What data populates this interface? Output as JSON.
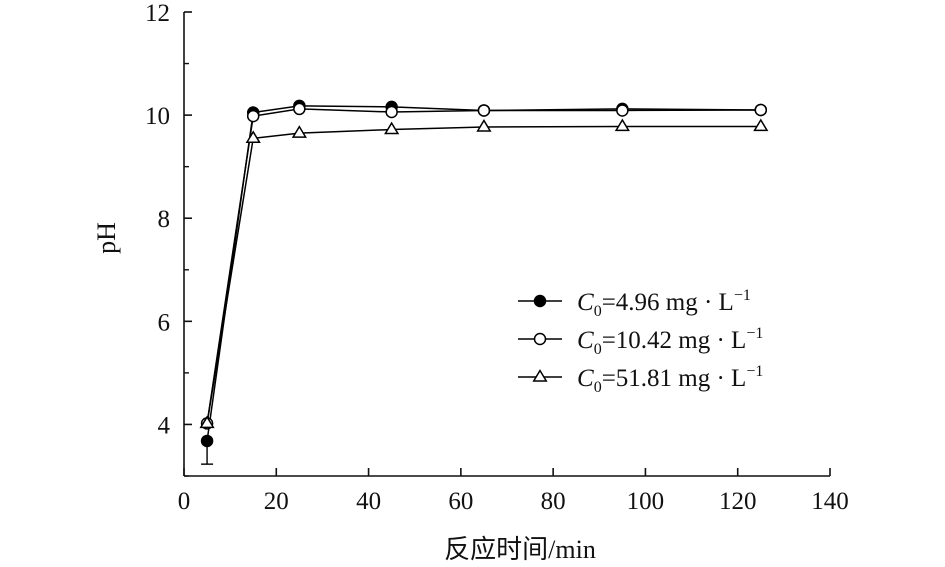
{
  "chart_data": {
    "type": "line",
    "xlabel": "反应时间/min",
    "ylabel": "pH",
    "xlim": [
      0,
      140
    ],
    "ylim": [
      3,
      12
    ],
    "x_ticks": [
      0,
      20,
      40,
      60,
      80,
      100,
      120,
      140
    ],
    "y_ticks": [
      4,
      6,
      8,
      10,
      12
    ],
    "grid": false,
    "legend_position": "center-right",
    "series": [
      {
        "name": "C0=4.96 mg · L−1",
        "legend": {
          "var": "C",
          "sub": "0",
          "main": "=4.96 mg · L",
          "sup": "−1"
        },
        "marker": "filled-circle",
        "x": [
          5,
          15,
          25,
          45,
          65,
          95,
          125
        ],
        "y": [
          3.68,
          10.05,
          10.18,
          10.16,
          10.09,
          10.12,
          10.1
        ],
        "error_low": [
          0.45,
          0,
          0,
          0,
          0,
          0,
          0
        ]
      },
      {
        "name": "C0=10.42 mg · L−1",
        "legend": {
          "var": "C",
          "sub": "0",
          "main": "=10.42 mg · L",
          "sup": "−1"
        },
        "marker": "open-circle",
        "x": [
          5,
          15,
          25,
          45,
          65,
          95,
          125
        ],
        "y": [
          4.02,
          9.98,
          10.12,
          10.06,
          10.09,
          10.09,
          10.1
        ],
        "error_low": [
          0,
          0,
          0,
          0,
          0,
          0,
          0
        ]
      },
      {
        "name": "C0=51.81 mg · L−1",
        "legend": {
          "var": "C",
          "sub": "0",
          "main": "=51.81 mg · L",
          "sup": "−1"
        },
        "marker": "open-triangle",
        "x": [
          5,
          15,
          25,
          45,
          65,
          95,
          125
        ],
        "y": [
          4.02,
          9.55,
          9.65,
          9.72,
          9.77,
          9.78,
          9.78
        ],
        "error_low": [
          0,
          0,
          0,
          0,
          0,
          0,
          0
        ]
      }
    ]
  }
}
